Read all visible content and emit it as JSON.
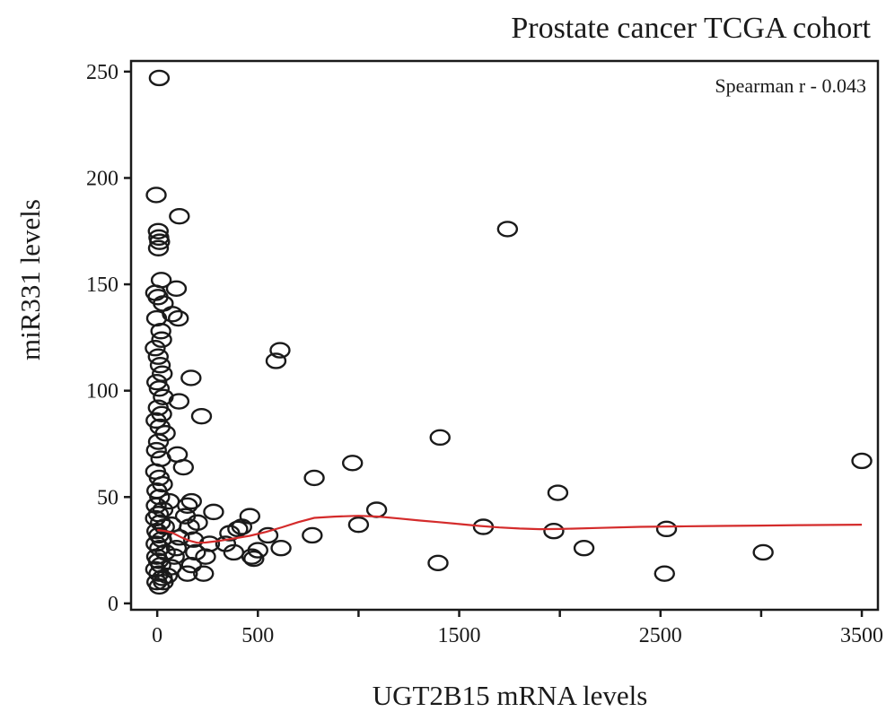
{
  "chart_data": {
    "type": "scatter",
    "title": "Prostate cancer TCGA cohort",
    "xlabel": "UGT2B15 mRNA levels",
    "ylabel": "miR331 levels",
    "annotation": "Spearman r - 0.043",
    "xlim": [
      -130,
      3580
    ],
    "ylim": [
      -3,
      255
    ],
    "xticks": [
      0,
      500,
      1500,
      2500,
      3500
    ],
    "xticks_minor": [
      1000,
      2000,
      3000
    ],
    "yticks": [
      0,
      50,
      100,
      150,
      200,
      250
    ],
    "grid": false,
    "colors": {
      "points": "#1a1a1a",
      "trend": "#d42b2b"
    },
    "series": [
      {
        "values": [
          [
            10,
            247
          ],
          [
            -5,
            192
          ],
          [
            5,
            175
          ],
          [
            8,
            172
          ],
          [
            12,
            170
          ],
          [
            6,
            167
          ],
          [
            110,
            182
          ],
          [
            20,
            152
          ],
          [
            -8,
            146
          ],
          [
            4,
            144
          ],
          [
            95,
            148
          ],
          [
            30,
            141
          ],
          [
            75,
            136
          ],
          [
            105,
            134
          ],
          [
            -3,
            134
          ],
          [
            18,
            128
          ],
          [
            22,
            124
          ],
          [
            -10,
            120
          ],
          [
            5,
            116
          ],
          [
            15,
            112
          ],
          [
            25,
            108
          ],
          [
            -2,
            104
          ],
          [
            10,
            101
          ],
          [
            30,
            97
          ],
          [
            168,
            106
          ],
          [
            108,
            95
          ],
          [
            5,
            92
          ],
          [
            22,
            89
          ],
          [
            -6,
            86
          ],
          [
            14,
            83
          ],
          [
            220,
            88
          ],
          [
            40,
            80
          ],
          [
            6,
            76
          ],
          [
            -4,
            72
          ],
          [
            100,
            70
          ],
          [
            18,
            68
          ],
          [
            130,
            64
          ],
          [
            -8,
            62
          ],
          [
            10,
            59
          ],
          [
            26,
            56
          ],
          [
            -2,
            53
          ],
          [
            12,
            50
          ],
          [
            60,
            48
          ],
          [
            -5,
            46
          ],
          [
            28,
            44
          ],
          [
            6,
            42
          ],
          [
            -9,
            40
          ],
          [
            16,
            38
          ],
          [
            36,
            36
          ],
          [
            -2,
            34
          ],
          [
            8,
            32
          ],
          [
            22,
            30
          ],
          [
            -6,
            28
          ],
          [
            12,
            26
          ],
          [
            40,
            24
          ],
          [
            -3,
            22
          ],
          [
            6,
            20
          ],
          [
            18,
            18
          ],
          [
            -8,
            16
          ],
          [
            8,
            14
          ],
          [
            25,
            12
          ],
          [
            -2,
            10
          ],
          [
            10,
            8
          ],
          [
            30,
            10
          ],
          [
            50,
            13
          ],
          [
            70,
            17
          ],
          [
            85,
            22
          ],
          [
            95,
            26
          ],
          [
            110,
            31
          ],
          [
            70,
            37
          ],
          [
            140,
            41
          ],
          [
            150,
            46
          ],
          [
            170,
            48
          ],
          [
            160,
            36
          ],
          [
            180,
            30
          ],
          [
            190,
            24
          ],
          [
            170,
            18
          ],
          [
            150,
            14
          ],
          [
            200,
            38
          ],
          [
            230,
            14
          ],
          [
            240,
            22
          ],
          [
            260,
            28
          ],
          [
            280,
            43
          ],
          [
            340,
            28
          ],
          [
            360,
            33
          ],
          [
            380,
            24
          ],
          [
            400,
            35
          ],
          [
            420,
            36
          ],
          [
            460,
            41
          ],
          [
            470,
            22
          ],
          [
            480,
            21
          ],
          [
            500,
            25
          ],
          [
            550,
            32
          ],
          [
            590,
            114
          ],
          [
            610,
            119
          ],
          [
            615,
            26
          ],
          [
            770,
            32
          ],
          [
            780,
            59
          ],
          [
            970,
            66
          ],
          [
            1000,
            37
          ],
          [
            1090,
            44
          ],
          [
            1395,
            19
          ],
          [
            1405,
            78
          ],
          [
            1620,
            36
          ],
          [
            1740,
            176
          ],
          [
            1970,
            34
          ],
          [
            1990,
            52
          ],
          [
            2120,
            26
          ],
          [
            2520,
            14
          ],
          [
            2530,
            35
          ],
          [
            3010,
            24
          ],
          [
            3500,
            67
          ]
        ]
      }
    ],
    "trend": [
      [
        0,
        34.5
      ],
      [
        40,
        34
      ],
      [
        80,
        33
      ],
      [
        120,
        31
      ],
      [
        160,
        29.5
      ],
      [
        200,
        28.5
      ],
      [
        240,
        28.6
      ],
      [
        300,
        29.3
      ],
      [
        380,
        30.5
      ],
      [
        460,
        31.8
      ],
      [
        540,
        33.6
      ],
      [
        620,
        35.8
      ],
      [
        700,
        38.2
      ],
      [
        780,
        40.2
      ],
      [
        880,
        40.8
      ],
      [
        1000,
        41.2
      ],
      [
        1100,
        40.8
      ],
      [
        1200,
        39.9
      ],
      [
        1300,
        39.0
      ],
      [
        1400,
        38.2
      ],
      [
        1500,
        37.3
      ],
      [
        1600,
        36.4
      ],
      [
        1700,
        35.7
      ],
      [
        1800,
        35.2
      ],
      [
        1900,
        34.9
      ],
      [
        2000,
        35.0
      ],
      [
        2200,
        35.5
      ],
      [
        2400,
        36.0
      ],
      [
        2600,
        36.2
      ],
      [
        2800,
        36.4
      ],
      [
        3000,
        36.6
      ],
      [
        3200,
        36.8
      ],
      [
        3350,
        36.9
      ],
      [
        3500,
        37.0
      ]
    ]
  }
}
